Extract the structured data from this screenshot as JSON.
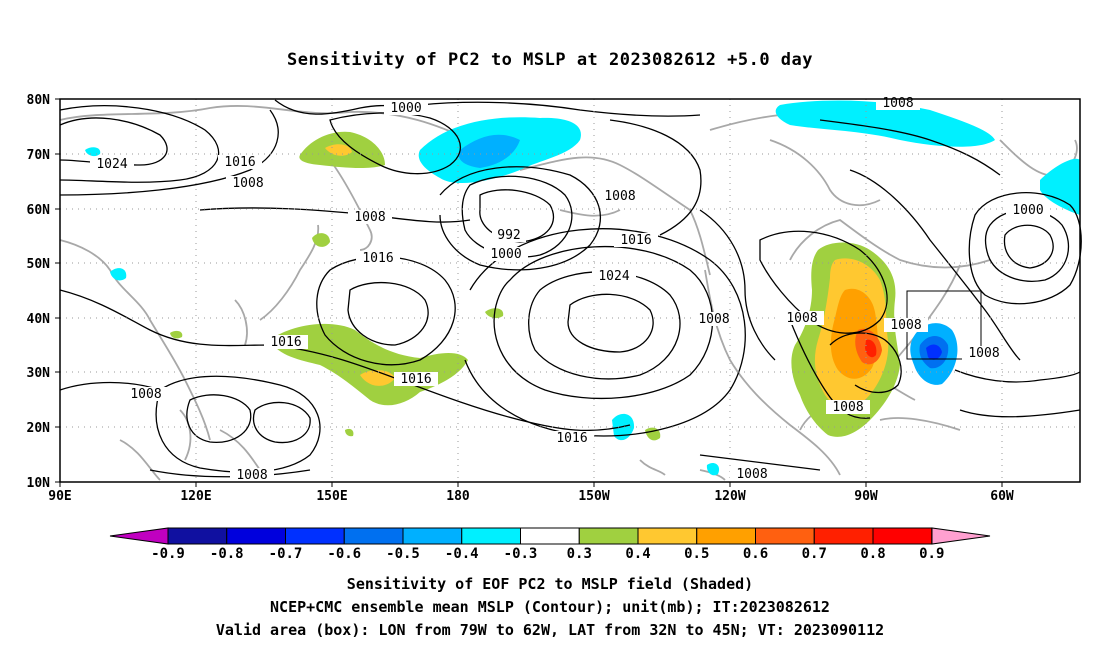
{
  "title": "Sensitivity of PC2 to MSLP at 2023082612 +5.0 day",
  "map": {
    "lat_ticks": [
      "80N",
      "70N",
      "60N",
      "50N",
      "40N",
      "30N",
      "20N",
      "10N"
    ],
    "lon_ticks": [
      "90E",
      "120E",
      "150E",
      "180",
      "150W",
      "120W",
      "90W",
      "60W"
    ],
    "contour_labels": [
      {
        "text": "1024"
      },
      {
        "text": "1016"
      },
      {
        "text": "1008"
      },
      {
        "text": "1000"
      },
      {
        "text": "1008"
      },
      {
        "text": "992"
      },
      {
        "text": "1000"
      },
      {
        "text": "1008"
      },
      {
        "text": "1016"
      },
      {
        "text": "1024"
      },
      {
        "text": "1016"
      },
      {
        "text": "1016"
      },
      {
        "text": "1008"
      },
      {
        "text": "1008"
      },
      {
        "text": "1016"
      },
      {
        "text": "1008"
      },
      {
        "text": "1008"
      },
      {
        "text": "1008"
      },
      {
        "text": "1008"
      },
      {
        "text": "1016"
      },
      {
        "text": "1008"
      },
      {
        "text": "1008"
      },
      {
        "text": "1000"
      },
      {
        "text": "1008"
      }
    ],
    "valid_box": {
      "lon_from": "79W",
      "lon_to": "62W",
      "lat_from": "32N",
      "lat_to": "45N"
    },
    "land_color": "#a8a8a8",
    "contour_color": "#000000"
  },
  "colorbar": {
    "labels": [
      "-0.9",
      "-0.8",
      "-0.7",
      "-0.6",
      "-0.5",
      "-0.4",
      "-0.3",
      "0.3",
      "0.4",
      "0.5",
      "0.6",
      "0.7",
      "0.8",
      "0.9"
    ],
    "colors": [
      "#1010a0",
      "#0000dd",
      "#0030ff",
      "#0070f0",
      "#00b0ff",
      "#00f0ff",
      "#ffffff",
      "#a0d040",
      "#ffc830",
      "#ffa000",
      "#ff6010",
      "#ff2000",
      "#ff0000"
    ],
    "under_color": "#c000c0",
    "over_color": "#ffa0d0"
  },
  "captions": {
    "line1": "Sensitivity of EOF PC2 to MSLP field (Shaded)",
    "line2": "NCEP+CMC ensemble mean MSLP (Contour); unit(mb); IT:2023082612",
    "line3": "Valid area (box): LON from 79W to 62W, LAT from 32N to 45N; VT: 2023090112"
  }
}
